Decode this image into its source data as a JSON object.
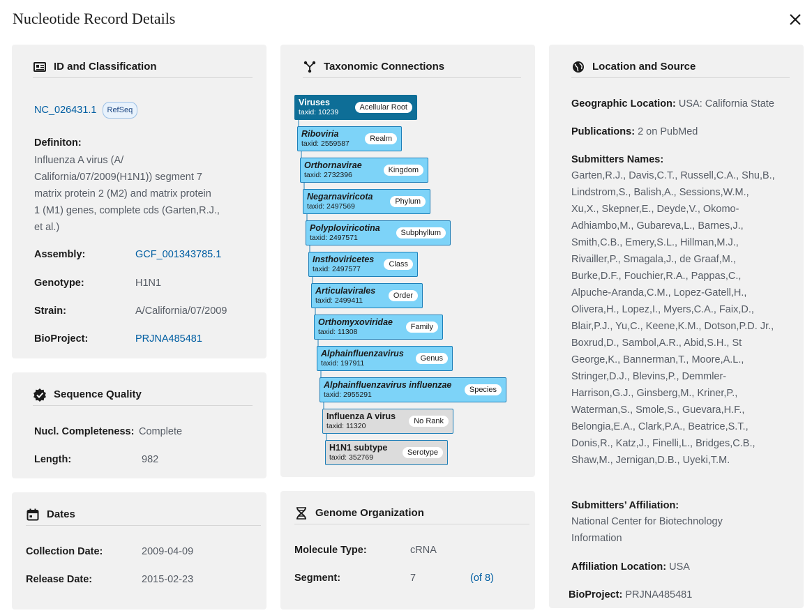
{
  "header": {
    "title": "Nucleotide Record Details"
  },
  "id_card": {
    "title": "ID and Classification",
    "accession": "NC_026431.1",
    "accession_badge": "RefSeq",
    "definition_label": "Definiton:",
    "definition_lines": [
      "Influenza A virus (A/",
      "California/07/2009(H1N1)) segment 7",
      "matrix protein 2 (M2)  and matrix protein",
      "1 (M1) genes, complete cds (Garten,R.J.,",
      "et al.)"
    ],
    "assembly_label": "Assembly:",
    "assembly_value": "GCF_001343785.1",
    "genotype_label": "Genotype:",
    "genotype_value": "H1N1",
    "strain_label": "Strain:",
    "strain_value": "A/California/07/2009",
    "bioproject_label": "BioProject:",
    "bioproject_value": "PRJNA485481"
  },
  "quality_card": {
    "title": "Sequence Quality",
    "completeness_label": "Nucl. Completeness:",
    "completeness_value": "Complete",
    "length_label": "Length:",
    "length_value": "982"
  },
  "dates_card": {
    "title": "Dates",
    "collection_label": "Collection Date:",
    "collection_value": "2009-04-09",
    "release_label": "Release Date:",
    "release_value": "2015-02-23"
  },
  "taxonomy_card": {
    "title": "Taxonomic Connections",
    "nodes": [
      {
        "name": "Viruses",
        "taxid": "taxid: 10239",
        "rank": "Acellular Root"
      },
      {
        "name": "Riboviria",
        "taxid": "taxid: 2559587",
        "rank": "Realm"
      },
      {
        "name": "Orthornavirae",
        "taxid": "taxid: 2732396",
        "rank": "Kingdom"
      },
      {
        "name": "Negarnaviricota",
        "taxid": "taxid: 2497569",
        "rank": "Phylum"
      },
      {
        "name": "Polyploviricotina",
        "taxid": "taxid: 2497571",
        "rank": "Subphyllum"
      },
      {
        "name": "Insthoviricetes",
        "taxid": "taxid: 2497577",
        "rank": "Class"
      },
      {
        "name": "Articulavirales",
        "taxid": "taxid: 2499411",
        "rank": "Order"
      },
      {
        "name": "Orthomyxoviridae",
        "taxid": "taxid: 11308",
        "rank": "Family"
      },
      {
        "name": "Alphainfluenzavirus",
        "taxid": "taxid: 197911",
        "rank": "Genus"
      },
      {
        "name": "Alphainfluenzavirus influenzae",
        "taxid": "taxid: 2955291",
        "rank": "Species"
      },
      {
        "name": "Influenza A virus",
        "taxid": "taxid: 11320",
        "rank": "No Rank"
      },
      {
        "name": "H1N1 subtype",
        "taxid": "taxid: 352769",
        "rank": "Serotype"
      }
    ]
  },
  "genome_card": {
    "title": "Genome Organization",
    "molecule_label": "Molecule Type:",
    "molecule_value": "cRNA",
    "segment_label": "Segment:",
    "segment_value": "7",
    "segment_of": "(of 8)"
  },
  "location_card": {
    "title": "Location and Source",
    "geo_label": "Geographic Location:",
    "geo_value": "USA: California State",
    "pub_label": "Publications:",
    "pub_value": "2 on PubMed",
    "submitters_label": "Submitters Names:",
    "submitters_lines": [
      "Garten,R.J., Davis,C.T., Russell,C.A., Shu,B.,",
      "Lindstrom,S., Balish,A.,  Sessions,W.M.,",
      "Xu,X., Skepner,E., Deyde,V., Okomo-",
      "Adhiambo,M.,  Gubareva,L., Barnes,J.,",
      "Smith,C.B., Emery,S.L., Hillman,M.J.,",
      "Rivailler,P., Smagala,J., de Graaf,M.,",
      "Burke,D.F., Fouchier,R.A.,  Pappas,C.,",
      "Alpuche-Aranda,C.M., Lopez-Gatell,H.,",
      "Olivera,H., Lopez,I.,  Myers,C.A., Faix,D.,",
      "Blair,P.J., Yu,C., Keene,K.M., Dotson,P.D. Jr.,",
      "Boxrud,D., Sambol,A.R., Abid,S.H., St",
      "George,K., Bannerman,T.,  Moore,A.L.,",
      "Stringer,D.J., Blevins,P., Demmler-",
      "Harrison,G.J.,  Ginsberg,M., Kriner,P.,",
      "Waterman,S., Smole,S., Guevara,H.F.,",
      "Belongia,E.A., Clark,P.A., Beatrice,S.T.,",
      "Donis,R., Katz,J., Finelli,L., Bridges,C.B.,",
      "Shaw,M., Jernigan,D.B., Uyeki,T.M."
    ],
    "affiliation_label": "Submitters’ Affiliation:",
    "affiliation_lines": [
      "National Center for Biotechnology",
      "Information"
    ],
    "aff_location_label": "Affiliation Location:",
    "aff_location_value": "USA",
    "bioproject_label": "BioProject:",
    "bioproject_value": "PRJNA485481"
  },
  "icons": {
    "close": "close-icon",
    "id": "id-card-icon",
    "quality": "verified-badge-icon",
    "dates": "calendar-icon",
    "taxonomy": "tree-icon",
    "genome": "dna-icon",
    "location": "globe-icon"
  },
  "colors": {
    "link": "#005ea2",
    "card": "#f1f1f1",
    "taxon": "#7dd3f8",
    "root": "#0e6e97",
    "no_rank": "#dcdcdc"
  }
}
